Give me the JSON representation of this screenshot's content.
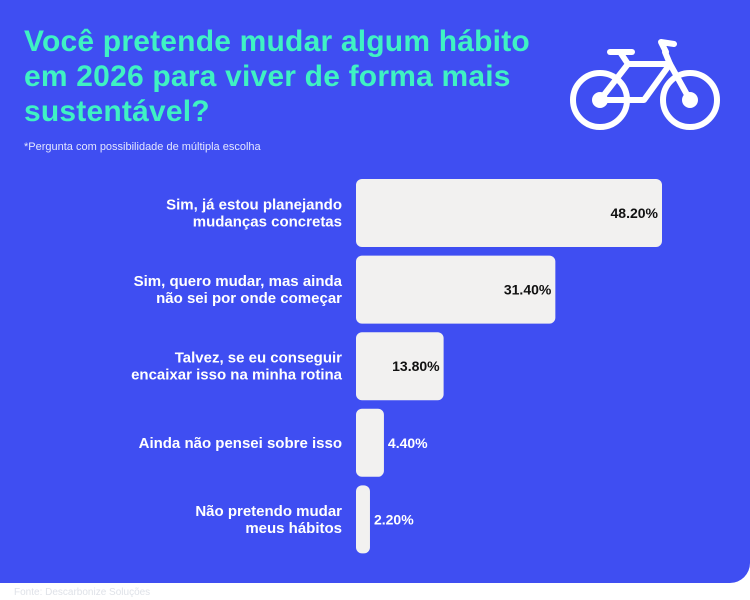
{
  "header": {
    "title": "Você pretende mudar algum hábito em 2026 para viver de forma mais sustentável?",
    "note": "*Pergunta com possibilidade de múltipla escolha"
  },
  "footer": {
    "source": "Fonte: Descarbonize Soluções"
  },
  "icons": {
    "illustration": "bicycle-icon"
  },
  "colors": {
    "background": "#3f4ef2",
    "title": "#3ff2c3",
    "bar": "#f2f1f0",
    "label": "#ffffff",
    "value_inside": "#111111",
    "value_outside": "#ffffff"
  },
  "chart_data": {
    "type": "bar",
    "orientation": "horizontal",
    "categories": [
      [
        "Sim, já estou planejando",
        "mudanças concretas"
      ],
      [
        "Sim, quero mudar, mas ainda",
        "não sei por onde começar"
      ],
      [
        "Talvez, se eu conseguir",
        "encaixar isso na minha rotina"
      ],
      [
        "Ainda não pensei sobre isso"
      ],
      [
        "Não pretendo mudar",
        "meus hábitos"
      ]
    ],
    "values": [
      48.2,
      31.4,
      13.8,
      4.4,
      2.2
    ],
    "value_labels": [
      "48.20%",
      "31.40%",
      "13.80%",
      "4.40%",
      "2.20%"
    ],
    "title": "",
    "xlabel": "",
    "ylabel": "",
    "xlim": [
      0,
      50
    ],
    "grid": false,
    "legend": "none"
  }
}
